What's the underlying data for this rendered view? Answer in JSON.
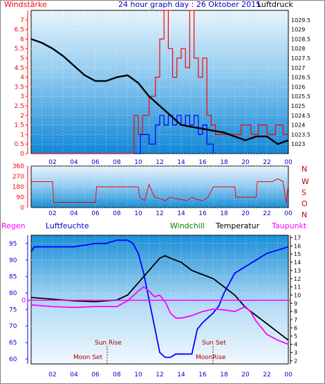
{
  "header": {
    "title": "24 hour graph day : 26 Oktober 2015",
    "left_label": "Windstärke",
    "right_label": "Luftdruck"
  },
  "colors": {
    "frame": "#000000",
    "grid": "#ffffff",
    "plot_top": "#e8f4fc",
    "plot_bottom": "#1a8fd8",
    "wind_red": "#ff0000",
    "wind_blue": "#0000ff",
    "pressure": "#000000",
    "humidity": "#0000ff",
    "temperature": "#000000",
    "dewpoint": "#ff00ff",
    "windchill": "#008000",
    "sun_moon": "#a00000",
    "nwson": "#c00000"
  },
  "chart_data": [
    {
      "type": "line",
      "name": "wind-pressure",
      "x_ticks": [
        "02",
        "04",
        "06",
        "08",
        "10",
        "12",
        "14",
        "16",
        "18",
        "20",
        "22",
        "00"
      ],
      "y_left_ticks": [
        "0",
        "0.5",
        "1",
        "1.5",
        "2",
        "2.5",
        "3",
        "3.5",
        "4",
        "4.5",
        "5",
        "5.5",
        "6",
        "6.5",
        "7"
      ],
      "y_right_ticks": [
        "1023",
        "1023.5",
        "1024",
        "1024.5",
        "1025",
        "1025.5",
        "1026",
        "1026.5",
        "1027",
        "1027.5",
        "1028",
        "1028.5",
        "1029",
        "1029.5"
      ],
      "ylim_left": [
        0,
        7.5
      ],
      "ylim_right": [
        1022.5,
        1030
      ],
      "pressure": {
        "x": [
          0,
          1,
          2,
          3,
          4,
          5,
          6,
          7,
          8,
          9,
          10,
          11,
          12,
          13,
          14,
          15,
          16,
          17,
          18,
          19,
          20,
          21,
          22,
          23,
          24
        ],
        "y": [
          1028.5,
          1028.3,
          1028.0,
          1027.6,
          1027.1,
          1026.6,
          1026.3,
          1026.3,
          1026.5,
          1026.6,
          1026.2,
          1025.5,
          1025.0,
          1024.5,
          1024.0,
          1023.9,
          1023.8,
          1023.7,
          1023.6,
          1023.4,
          1023.2,
          1023.4,
          1023.4,
          1023.0,
          1023.2
        ]
      },
      "wind_gust": {
        "x": [
          0,
          8.4,
          9.6,
          10.0,
          10.4,
          11.0,
          11.6,
          12.0,
          12.4,
          12.8,
          13.2,
          13.6,
          14.0,
          14.4,
          14.8,
          15.2,
          15.6,
          16.0,
          16.4,
          16.8,
          17.2,
          19.0,
          19.6,
          20.5,
          21.2,
          22.0,
          22.8,
          23.5,
          24.0
        ],
        "y": [
          0,
          0,
          2,
          1,
          2,
          3,
          4,
          6,
          7.5,
          5.5,
          4,
          5,
          5.5,
          4.5,
          7.5,
          5,
          4,
          5,
          2,
          1.5,
          1,
          1,
          1.5,
          1,
          1.5,
          1,
          1.5,
          1,
          1
        ]
      },
      "wind_avg": {
        "x": [
          9.6,
          10.2,
          11.0,
          11.6,
          12.0,
          12.4,
          12.8,
          13.2,
          13.6,
          14.0,
          14.4,
          14.8,
          15.2,
          15.6,
          16.0,
          16.4,
          17.0
        ],
        "y": [
          0,
          1,
          0.5,
          1.5,
          2,
          1.5,
          2,
          1.5,
          2,
          1.5,
          2,
          1.5,
          2,
          1,
          1.5,
          0.5,
          0
        ]
      }
    },
    {
      "type": "line",
      "name": "wind-direction",
      "x_ticks": [
        "02",
        "04",
        "06",
        "08",
        "10",
        "12",
        "14",
        "16",
        "18",
        "20",
        "22",
        "00"
      ],
      "y_left_ticks": [
        "0",
        "90",
        "180",
        "270",
        "360"
      ],
      "y_right_ticks": [
        "N",
        "W",
        "S",
        "O",
        "N"
      ],
      "ylim": [
        0,
        360
      ],
      "direction": {
        "x": [
          0,
          2.0,
          2.1,
          6.0,
          6.1,
          10.0,
          10.1,
          10.6,
          11.0,
          11.5,
          12.0,
          12.5,
          13.0,
          13.5,
          14.0,
          14.5,
          15.0,
          15.5,
          16.0,
          16.5,
          17.0,
          17.2,
          19.0,
          19.1,
          21.0,
          21.1,
          22.5,
          23.0,
          23.5,
          23.8,
          24.0
        ],
        "y": [
          225,
          225,
          45,
          45,
          180,
          180,
          90,
          60,
          200,
          90,
          80,
          60,
          90,
          80,
          70,
          60,
          90,
          70,
          60,
          90,
          180,
          180,
          180,
          90,
          90,
          225,
          225,
          250,
          225,
          40,
          200
        ]
      }
    },
    {
      "type": "line",
      "name": "temperature-humidity",
      "legend": [
        "Regen",
        "Luftfeuchte",
        "Windchill",
        "Temperatur",
        "Taupunkt"
      ],
      "x_ticks": [
        "02",
        "04",
        "06",
        "08",
        "10",
        "12",
        "14",
        "16",
        "18",
        "20",
        "22",
        "00"
      ],
      "y_left_ticks": [
        "60",
        "65",
        "70",
        "75",
        "80",
        "85",
        "90",
        "95"
      ],
      "y_right_ticks": [
        "2",
        "3",
        "4",
        "5",
        "6",
        "7",
        "8",
        "9",
        "10",
        "11",
        "12",
        "13",
        "14",
        "15",
        "16",
        "17"
      ],
      "y_left_zero_marker": "0",
      "ylim_left": [
        58.5,
        97.5
      ],
      "ylim_right": [
        1.6,
        17.3
      ],
      "annotations": {
        "sun_rise": "Sun Rise",
        "sun_set": "Sun Set",
        "moon_set": "Moon Set",
        "moon_rise": "MoonRise"
      },
      "humidity": {
        "x": [
          0,
          0.3,
          2,
          4,
          6,
          7,
          8,
          8.5,
          9,
          9.5,
          10,
          10.5,
          11,
          11.5,
          12,
          12.5,
          13,
          13.5,
          14,
          14.5,
          15,
          15.5,
          16,
          16.5,
          17,
          17.5,
          18,
          18.5,
          19,
          20,
          21,
          22,
          23,
          24
        ],
        "y": [
          92.5,
          94,
          94,
          94,
          95,
          95,
          96,
          96,
          96,
          95,
          92,
          86,
          78,
          70,
          62,
          60.5,
          60.5,
          61.5,
          61.5,
          61.5,
          61.5,
          69,
          71,
          72.5,
          74,
          76,
          80,
          83,
          86,
          88,
          90,
          92,
          93,
          94
        ]
      },
      "temperature": {
        "x": [
          0,
          2,
          4,
          6,
          8,
          9,
          10,
          11,
          12,
          12.5,
          13,
          14,
          15,
          16,
          17,
          18,
          19,
          20,
          21,
          22,
          23,
          24
        ],
        "y": [
          9.7,
          9.5,
          9.3,
          9.2,
          9.4,
          10.0,
          11.5,
          13.0,
          14.5,
          14.8,
          14.5,
          14.0,
          13.0,
          12.5,
          12.0,
          11.0,
          10.0,
          8.5,
          7.5,
          6.5,
          5.5,
          4.5
        ]
      },
      "dewpoint": {
        "x": [
          0,
          2,
          4,
          6,
          8,
          9,
          10,
          10.5,
          11,
          11.5,
          12,
          12.5,
          13,
          13.5,
          14,
          15,
          16,
          17,
          18,
          19,
          20,
          20.5,
          21,
          22,
          23,
          24
        ],
        "y": [
          8.8,
          8.6,
          8.5,
          8.6,
          8.6,
          9.3,
          10.5,
          11.0,
          10.5,
          9.8,
          10.0,
          9.2,
          7.8,
          7.2,
          7.2,
          7.5,
          8.0,
          8.3,
          8.2,
          8.0,
          8.6,
          7.9,
          6.8,
          5.2,
          4.5,
          4.0
        ]
      }
    }
  ]
}
